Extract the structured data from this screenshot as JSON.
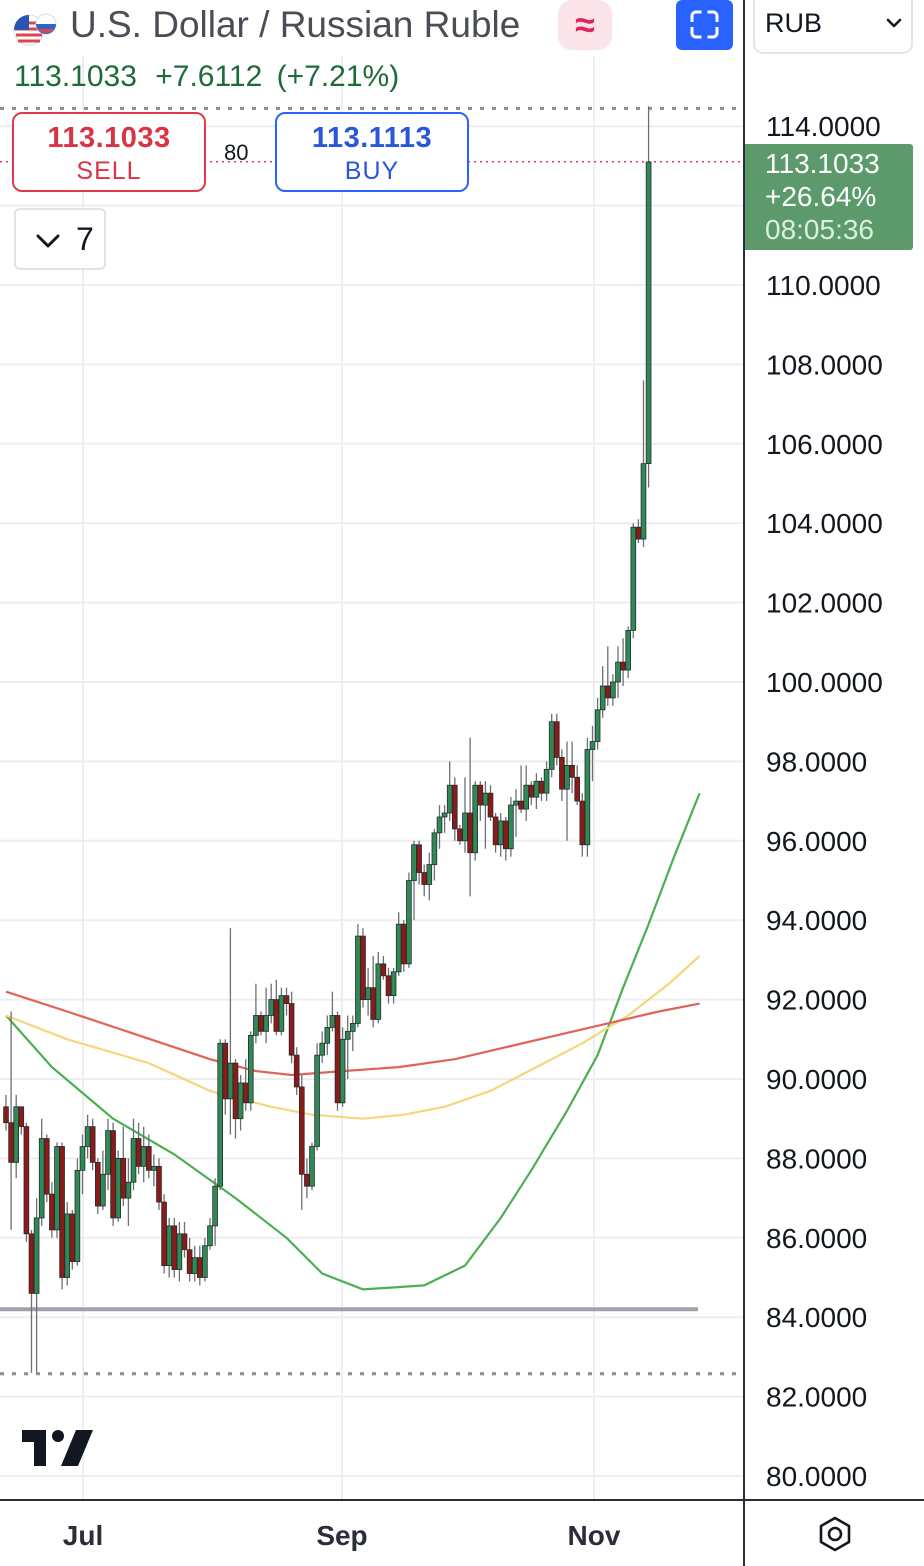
{
  "header": {
    "title": "U.S. Dollar / Russian Ruble",
    "last_price": "113.1033",
    "change": "+7.6112",
    "change_pct": "(+7.21%)",
    "flag_icon": "us-ru-flag-icon",
    "wave_icon_glyph": "≈",
    "currency_select": {
      "selected": "RUB"
    }
  },
  "trade": {
    "sell_price": "113.1033",
    "sell_label": "SELL",
    "buy_price": "113.1113",
    "buy_label": "BUY",
    "spread": "80"
  },
  "indicators": {
    "count": "7"
  },
  "price_badge": {
    "price": "113.1033",
    "change_pct": "+26.64%",
    "countdown": "08:05:36"
  },
  "colors": {
    "up": "#2e8b57",
    "down": "#8b1a1a",
    "badge": "#5c9a6b",
    "sell": "#e03a4a",
    "buy": "#2962ff",
    "ma_green": "#4caf50",
    "ma_red": "#e0625a",
    "ma_yellow": "#f5d67a"
  },
  "chart_data": {
    "type": "candlestick",
    "symbol": "USD/RUB",
    "y_axis": {
      "ticks": [
        "114.0000",
        "110.0000",
        "108.0000",
        "106.0000",
        "104.0000",
        "102.0000",
        "100.0000",
        "98.0000",
        "96.0000",
        "94.0000",
        "92.0000",
        "90.0000",
        "88.0000",
        "86.0000",
        "84.0000",
        "82.0000",
        "80.0000"
      ],
      "range": [
        79.4,
        115.3
      ]
    },
    "x_axis": {
      "ticks": [
        "Jul",
        "Sep",
        "Nov"
      ]
    },
    "current_price": 113.1033,
    "session_high": 114.5,
    "session_low": 82.55,
    "support_level": 84.2,
    "candles": [
      [
        89.3,
        89.6,
        88.7,
        88.9
      ],
      [
        88.9,
        91.7,
        86.2,
        87.9
      ],
      [
        87.9,
        89.6,
        87.5,
        89.3
      ],
      [
        89.3,
        89.3,
        88.6,
        88.8
      ],
      [
        88.8,
        88.9,
        85.9,
        86.1
      ],
      [
        86.1,
        86.2,
        82.6,
        84.6
      ],
      [
        84.6,
        87.0,
        82.6,
        86.5
      ],
      [
        86.5,
        89.0,
        86.3,
        88.5
      ],
      [
        88.5,
        88.6,
        86.9,
        87.1
      ],
      [
        87.1,
        87.4,
        86.0,
        86.2
      ],
      [
        86.2,
        88.4,
        86.0,
        88.3
      ],
      [
        88.3,
        88.4,
        84.7,
        85.0
      ],
      [
        85.0,
        86.9,
        84.8,
        86.6
      ],
      [
        86.6,
        86.7,
        85.2,
        85.4
      ],
      [
        85.4,
        88.0,
        85.3,
        87.7
      ],
      [
        87.7,
        88.6,
        87.1,
        88.3
      ],
      [
        88.3,
        89.1,
        88.0,
        88.8
      ],
      [
        88.8,
        89.0,
        87.7,
        87.9
      ],
      [
        87.9,
        88.0,
        86.6,
        86.8
      ],
      [
        86.8,
        88.2,
        86.7,
        87.6
      ],
      [
        87.6,
        89.0,
        87.2,
        88.7
      ],
      [
        88.7,
        88.9,
        86.3,
        86.5
      ],
      [
        86.5,
        88.2,
        86.4,
        88.0
      ],
      [
        88.0,
        88.8,
        86.8,
        87.0
      ],
      [
        87.0,
        88.0,
        86.3,
        87.4
      ],
      [
        87.4,
        89.0,
        87.2,
        88.5
      ],
      [
        88.5,
        88.9,
        87.6,
        87.8
      ],
      [
        87.8,
        88.8,
        87.4,
        88.3
      ],
      [
        88.3,
        88.6,
        87.5,
        87.7
      ],
      [
        87.7,
        88.1,
        87.3,
        87.8
      ],
      [
        87.8,
        88.0,
        86.7,
        86.9
      ],
      [
        86.9,
        87.1,
        85.1,
        85.3
      ],
      [
        85.3,
        86.5,
        85.0,
        86.3
      ],
      [
        86.3,
        86.5,
        85.0,
        85.2
      ],
      [
        85.2,
        86.4,
        84.9,
        86.1
      ],
      [
        86.1,
        86.4,
        85.5,
        85.7
      ],
      [
        85.7,
        86.0,
        84.9,
        85.1
      ],
      [
        85.1,
        85.8,
        84.9,
        85.5
      ],
      [
        85.5,
        85.8,
        84.8,
        85.0
      ],
      [
        85.0,
        86.0,
        84.9,
        85.8
      ],
      [
        85.8,
        86.5,
        85.7,
        86.3
      ],
      [
        86.3,
        87.5,
        85.8,
        87.3
      ],
      [
        87.3,
        91.0,
        87.2,
        90.9
      ],
      [
        90.9,
        91.0,
        89.1,
        89.5
      ],
      [
        89.5,
        93.8,
        88.6,
        90.4
      ],
      [
        90.4,
        90.5,
        88.5,
        89.0
      ],
      [
        89.0,
        90.1,
        88.7,
        89.9
      ],
      [
        89.9,
        90.5,
        89.2,
        89.4
      ],
      [
        89.4,
        91.2,
        89.2,
        91.1
      ],
      [
        91.1,
        92.4,
        90.9,
        91.6
      ],
      [
        91.6,
        91.7,
        91.1,
        91.2
      ],
      [
        91.2,
        92.3,
        90.9,
        91.6
      ],
      [
        91.6,
        92.4,
        91.4,
        92.0
      ],
      [
        92.0,
        92.5,
        91.1,
        91.2
      ],
      [
        91.2,
        92.3,
        91.1,
        92.1
      ],
      [
        92.1,
        92.3,
        91.6,
        91.9
      ],
      [
        91.9,
        92.2,
        90.4,
        90.6
      ],
      [
        90.6,
        90.8,
        89.6,
        89.8
      ],
      [
        89.8,
        90.1,
        86.7,
        87.6
      ],
      [
        87.6,
        88.0,
        87.0,
        87.3
      ],
      [
        87.3,
        88.4,
        87.2,
        88.3
      ],
      [
        88.3,
        90.9,
        88.2,
        90.6
      ],
      [
        90.6,
        91.2,
        90.4,
        90.9
      ],
      [
        90.9,
        91.6,
        90.6,
        91.3
      ],
      [
        91.3,
        92.2,
        91.2,
        91.6
      ],
      [
        91.6,
        91.7,
        89.2,
        89.4
      ],
      [
        89.4,
        91.3,
        89.3,
        91.0
      ],
      [
        91.0,
        91.6,
        90.0,
        91.2
      ],
      [
        91.2,
        91.6,
        90.7,
        91.4
      ],
      [
        91.4,
        93.9,
        91.3,
        93.6
      ],
      [
        93.6,
        93.8,
        91.8,
        92.0
      ],
      [
        92.0,
        92.8,
        91.6,
        92.3
      ],
      [
        92.3,
        93.1,
        91.3,
        91.5
      ],
      [
        91.5,
        93.2,
        91.4,
        92.9
      ],
      [
        92.9,
        93.1,
        92.5,
        92.6
      ],
      [
        92.6,
        92.8,
        91.9,
        92.1
      ],
      [
        92.1,
        92.8,
        91.9,
        92.7
      ],
      [
        92.7,
        94.2,
        92.6,
        93.9
      ],
      [
        93.9,
        94.0,
        92.7,
        92.9
      ],
      [
        92.9,
        95.2,
        92.8,
        95.0
      ],
      [
        95.0,
        96.0,
        94.0,
        95.9
      ],
      [
        95.9,
        96.0,
        94.9,
        95.2
      ],
      [
        95.2,
        95.4,
        94.6,
        94.9
      ],
      [
        94.9,
        95.7,
        94.5,
        95.4
      ],
      [
        95.4,
        96.3,
        95.0,
        96.2
      ],
      [
        96.2,
        96.9,
        95.8,
        96.6
      ],
      [
        96.6,
        96.9,
        96.2,
        96.7
      ],
      [
        96.7,
        98.0,
        96.5,
        97.4
      ],
      [
        97.4,
        97.6,
        96.0,
        96.3
      ],
      [
        96.3,
        96.4,
        95.9,
        96.0
      ],
      [
        96.0,
        97.6,
        95.7,
        96.7
      ],
      [
        96.7,
        98.6,
        94.6,
        95.7
      ],
      [
        95.7,
        97.5,
        95.5,
        97.4
      ],
      [
        97.4,
        97.5,
        96.5,
        96.9
      ],
      [
        96.9,
        97.5,
        95.8,
        97.2
      ],
      [
        97.2,
        97.4,
        96.5,
        96.6
      ],
      [
        96.6,
        96.7,
        95.7,
        95.9
      ],
      [
        95.9,
        96.7,
        95.6,
        96.5
      ],
      [
        96.5,
        96.6,
        95.5,
        95.8
      ],
      [
        95.8,
        97.1,
        95.6,
        96.9
      ],
      [
        96.9,
        97.3,
        96.1,
        97.0
      ],
      [
        97.0,
        97.9,
        96.7,
        96.8
      ],
      [
        96.8,
        97.9,
        96.5,
        97.4
      ],
      [
        97.4,
        97.5,
        96.9,
        97.1
      ],
      [
        97.1,
        97.7,
        96.8,
        97.5
      ],
      [
        97.5,
        97.6,
        97.0,
        97.2
      ],
      [
        97.2,
        98.0,
        97.0,
        97.8
      ],
      [
        97.8,
        99.2,
        97.6,
        99.0
      ],
      [
        99.0,
        99.2,
        97.9,
        98.1
      ],
      [
        98.1,
        98.3,
        97.0,
        97.3
      ],
      [
        97.3,
        98.5,
        96.0,
        97.9
      ],
      [
        97.9,
        98.5,
        97.2,
        97.6
      ],
      [
        97.6,
        97.9,
        96.9,
        97.0
      ],
      [
        97.0,
        97.2,
        95.6,
        95.9
      ],
      [
        95.9,
        98.6,
        95.6,
        98.3
      ],
      [
        98.3,
        98.9,
        97.5,
        98.5
      ],
      [
        98.5,
        99.6,
        98.3,
        99.3
      ],
      [
        99.3,
        100.4,
        99.1,
        99.9
      ],
      [
        99.9,
        100.9,
        99.4,
        99.6
      ],
      [
        99.6,
        100.2,
        99.4,
        100.0
      ],
      [
        100.0,
        100.9,
        99.6,
        100.5
      ],
      [
        100.5,
        101.1,
        99.9,
        100.3
      ],
      [
        100.3,
        101.4,
        100.1,
        101.3
      ],
      [
        101.3,
        104.0,
        101.1,
        103.9
      ],
      [
        103.9,
        104.1,
        103.5,
        103.6
      ],
      [
        103.6,
        107.6,
        103.4,
        105.5
      ],
      [
        105.5,
        114.5,
        104.9,
        113.1
      ]
    ],
    "moving_averages": [
      {
        "color": "#4caf50",
        "points": [
          [
            91.6,
            0
          ],
          [
            90.3,
            9
          ],
          [
            89.0,
            21
          ],
          [
            88.1,
            33
          ],
          [
            87.0,
            45
          ],
          [
            86.0,
            55
          ],
          [
            85.1,
            62
          ],
          [
            84.7,
            70
          ],
          [
            84.8,
            82
          ],
          [
            85.3,
            90
          ],
          [
            86.5,
            97
          ],
          [
            87.7,
            103
          ],
          [
            89.2,
            110
          ],
          [
            90.6,
            116
          ],
          [
            92.3,
            121
          ],
          [
            93.9,
            126
          ],
          [
            95.6,
            131
          ],
          [
            97.2,
            136
          ]
        ]
      },
      {
        "color": "#f5d67a",
        "points": [
          [
            91.6,
            0
          ],
          [
            91.0,
            12
          ],
          [
            90.4,
            28
          ],
          [
            89.7,
            40
          ],
          [
            89.3,
            52
          ],
          [
            89.1,
            60
          ],
          [
            89.0,
            70
          ],
          [
            89.1,
            78
          ],
          [
            89.3,
            86
          ],
          [
            89.7,
            95
          ],
          [
            90.3,
            104
          ],
          [
            90.9,
            113
          ],
          [
            91.6,
            122
          ],
          [
            92.4,
            130
          ],
          [
            93.1,
            136
          ]
        ]
      },
      {
        "color": "#e0625a",
        "points": [
          [
            92.2,
            0
          ],
          [
            91.7,
            12
          ],
          [
            91.1,
            26
          ],
          [
            90.5,
            40
          ],
          [
            90.2,
            49
          ],
          [
            90.1,
            56
          ],
          [
            90.2,
            66
          ],
          [
            90.3,
            77
          ],
          [
            90.5,
            88
          ],
          [
            90.8,
            98
          ],
          [
            91.1,
            108
          ],
          [
            91.4,
            118
          ],
          [
            91.7,
            128
          ],
          [
            91.9,
            136
          ]
        ]
      }
    ]
  }
}
